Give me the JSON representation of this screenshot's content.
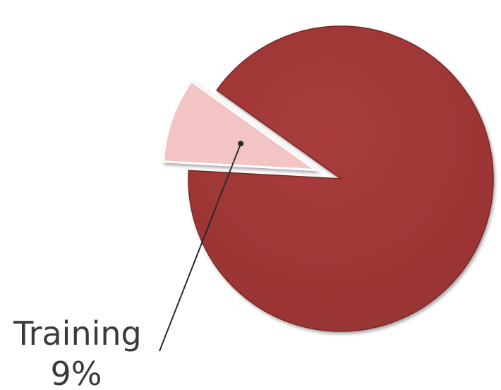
{
  "chart_data": {
    "type": "pie",
    "title": "",
    "slices": [
      {
        "label": "",
        "value": 91,
        "color": "#a03838",
        "exploded": false,
        "show_label": false
      },
      {
        "label": "Training",
        "value": 9,
        "value_label": "9%",
        "color": "#f2c4c4",
        "exploded": true,
        "show_label": true
      }
    ],
    "legend": "none",
    "label_style": "callout"
  }
}
